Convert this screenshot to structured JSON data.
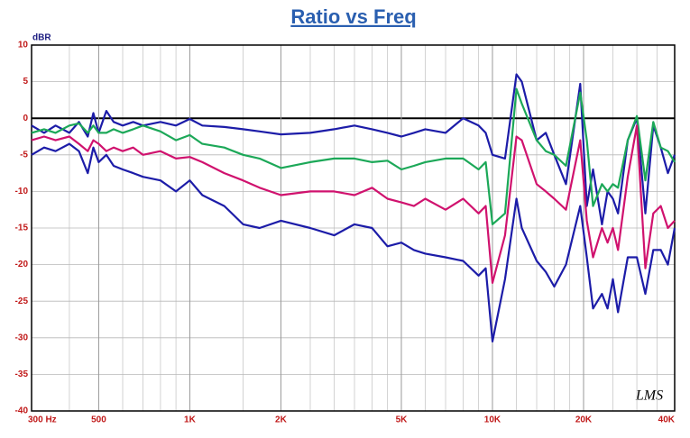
{
  "chart_data": {
    "type": "line",
    "title": "Ratio vs Freq",
    "y_label": "dBR",
    "annotation": "LMS",
    "log_x": true,
    "grid": true,
    "x": [
      300,
      330,
      360,
      400,
      430,
      460,
      480,
      500,
      530,
      560,
      600,
      650,
      700,
      800,
      900,
      1000,
      1100,
      1300,
      1500,
      1700,
      2000,
      2500,
      3000,
      3500,
      4000,
      4500,
      5000,
      5500,
      6000,
      7000,
      8000,
      9000,
      9500,
      10000,
      11000,
      12000,
      12500,
      14000,
      15000,
      16000,
      17500,
      19500,
      20500,
      21500,
      23000,
      24000,
      25000,
      26000,
      28000,
      30000,
      32000,
      34000,
      36000,
      38000,
      40000
    ],
    "series": [
      {
        "color": "#1c1ca8",
        "values": [
          -1,
          -2,
          -1,
          -2,
          -0.5,
          -2.5,
          0.7,
          -2,
          1,
          -0.5,
          -1,
          -0.5,
          -1,
          -0.5,
          -1,
          -0.1,
          -1,
          -1.2,
          -1.5,
          -1.8,
          -2.2,
          -2,
          -1.5,
          -1,
          -1.5,
          -2,
          -2.5,
          -2,
          -1.5,
          -2,
          0,
          -1,
          -2,
          -5,
          -5.5,
          6,
          5,
          -3,
          -2,
          -5,
          -9,
          4.7,
          -12,
          -7,
          -14.5,
          -10,
          -11,
          -13,
          -3,
          0,
          -13,
          -1,
          -4,
          -7.5,
          -5
        ]
      },
      {
        "color": "#1ca858",
        "values": [
          -2,
          -1.5,
          -2,
          -1,
          -0.7,
          -2,
          -1,
          -2,
          -2,
          -1.5,
          -2,
          -1.5,
          -1,
          -1.8,
          -3,
          -2.3,
          -3.5,
          -4,
          -5,
          -5.5,
          -6.8,
          -6,
          -5.5,
          -5.5,
          -6,
          -5.8,
          -7,
          -6.5,
          -6,
          -5.5,
          -5.5,
          -7,
          -6,
          -14.5,
          -13,
          4,
          2,
          -3,
          -4.5,
          -5,
          -6.5,
          3.5,
          -3,
          -12,
          -9,
          -10,
          -9,
          -9.5,
          -3,
          0.3,
          -8.5,
          -0.5,
          -4,
          -4.5,
          -6
        ]
      },
      {
        "color": "#d0126e",
        "values": [
          -3,
          -2.5,
          -3,
          -2.5,
          -3.5,
          -4.5,
          -3,
          -3.5,
          -4.5,
          -4,
          -4.5,
          -4,
          -5,
          -4.5,
          -5.5,
          -5.3,
          -6,
          -7.5,
          -8.5,
          -9.5,
          -10.5,
          -10,
          -10,
          -10.5,
          -9.5,
          -11,
          -11.5,
          -12,
          -11,
          -12.5,
          -11,
          -13,
          -12,
          -22.5,
          -16,
          -2.5,
          -3,
          -9,
          -10,
          -11,
          -12.5,
          -3,
          -14,
          -19,
          -15,
          -17,
          -15,
          -18,
          -8,
          -1,
          -20.5,
          -13,
          -12,
          -15,
          -14
        ]
      },
      {
        "color": "#1c1ca8",
        "values": [
          -5,
          -4,
          -4.5,
          -3.5,
          -4.5,
          -7.5,
          -4,
          -6,
          -5,
          -6.5,
          -7,
          -7.5,
          -8,
          -8.5,
          -10,
          -8.5,
          -10.5,
          -12,
          -14.5,
          -15,
          -14,
          -15,
          -16,
          -14.5,
          -15,
          -17.5,
          -17,
          -18,
          -18.5,
          -19,
          -19.5,
          -21.5,
          -20.5,
          -30.5,
          -22,
          -11,
          -15,
          -19.5,
          -21,
          -23,
          -20,
          -12,
          -19,
          -26,
          -24,
          -26,
          -22,
          -26.5,
          -19,
          -19,
          -24,
          -18,
          -18,
          -20,
          -15
        ]
      }
    ],
    "xlim": [
      300,
      40000
    ],
    "xticks": [
      {
        "value": 300,
        "label": "300  Hz"
      },
      500,
      {
        "value": 1000,
        "label": "1K"
      },
      {
        "value": 2000,
        "label": "2K"
      },
      {
        "value": 5000,
        "label": "5K"
      },
      {
        "value": 10000,
        "label": "10K"
      },
      {
        "value": 20000,
        "label": "20K"
      },
      {
        "value": 40000,
        "label": "40K"
      }
    ],
    "xgrid": [
      400,
      600,
      700,
      800,
      900,
      1500,
      2500,
      3000,
      3500,
      4000,
      4500,
      6000,
      7000,
      8000,
      9000,
      12000,
      14000,
      16000,
      18000,
      25000,
      30000,
      35000
    ],
    "ylim": [
      -40,
      10
    ],
    "yticks": [
      -40,
      -35,
      -30,
      -25,
      -20,
      -15,
      -10,
      -5,
      0,
      5,
      10
    ]
  }
}
